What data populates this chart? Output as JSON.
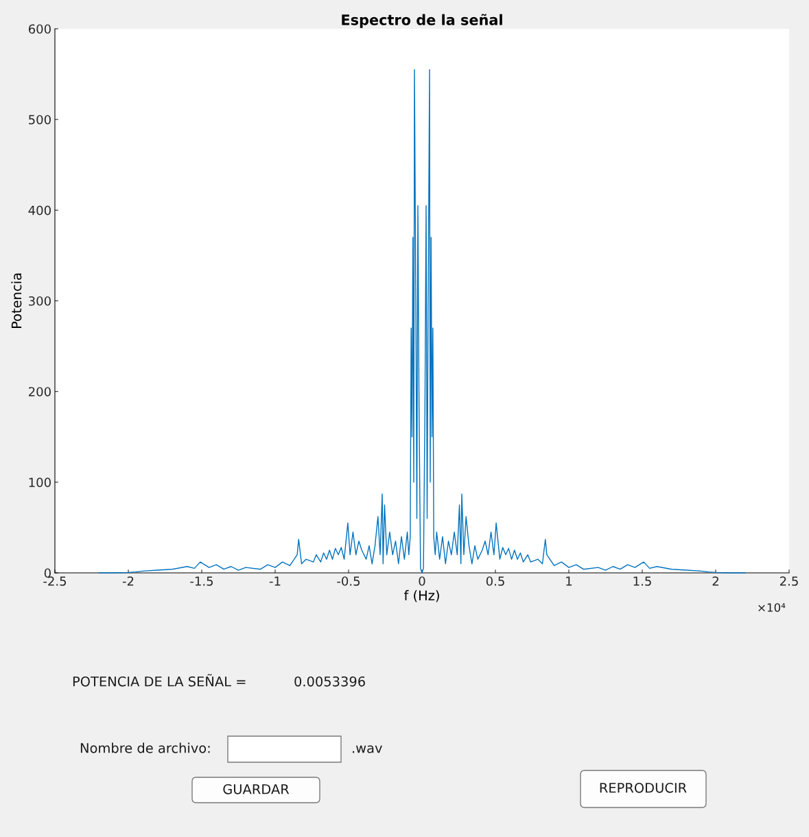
{
  "chart_data": {
    "type": "line",
    "title": "Espectro de la señal",
    "xlabel": "f (Hz)",
    "ylabel": "Potencia",
    "x": [
      -2.2,
      -2.1,
      -2.0,
      -1.95,
      -1.9,
      -1.8,
      -1.7,
      -1.6,
      -1.55,
      -1.51,
      -1.45,
      -1.4,
      -1.35,
      -1.3,
      -1.25,
      -1.2,
      -1.1,
      -1.05,
      -1.0,
      -0.95,
      -0.9,
      -0.85,
      -0.84,
      -0.82,
      -0.79,
      -0.74,
      -0.72,
      -0.69,
      -0.67,
      -0.65,
      -0.63,
      -0.61,
      -0.59,
      -0.57,
      -0.55,
      -0.53,
      -0.505,
      -0.49,
      -0.47,
      -0.45,
      -0.43,
      -0.41,
      -0.38,
      -0.36,
      -0.34,
      -0.32,
      -0.3,
      -0.285,
      -0.271,
      -0.265,
      -0.255,
      -0.24,
      -0.22,
      -0.2,
      -0.18,
      -0.16,
      -0.14,
      -0.12,
      -0.1,
      -0.09,
      -0.08,
      -0.074,
      -0.068,
      -0.062,
      -0.056,
      -0.0514,
      -0.042,
      -0.035,
      -0.028,
      -0.02,
      -0.01,
      0,
      0.01,
      0.02,
      0.028,
      0.035,
      0.042,
      0.0514,
      0.056,
      0.062,
      0.068,
      0.074,
      0.08,
      0.09,
      0.1,
      0.12,
      0.14,
      0.16,
      0.18,
      0.2,
      0.22,
      0.24,
      0.255,
      0.265,
      0.271,
      0.285,
      0.3,
      0.32,
      0.34,
      0.36,
      0.38,
      0.41,
      0.43,
      0.45,
      0.47,
      0.49,
      0.505,
      0.53,
      0.55,
      0.57,
      0.59,
      0.61,
      0.63,
      0.65,
      0.67,
      0.69,
      0.72,
      0.74,
      0.79,
      0.82,
      0.84,
      0.85,
      0.9,
      0.95,
      1.0,
      1.05,
      1.1,
      1.2,
      1.25,
      1.3,
      1.35,
      1.4,
      1.45,
      1.51,
      1.55,
      1.6,
      1.7,
      1.8,
      1.9,
      1.95,
      2.0,
      2.1,
      2.2
    ],
    "values": [
      0,
      0,
      0.5,
      1,
      2,
      3,
      4,
      7,
      5,
      12,
      6,
      9,
      4,
      7,
      3,
      6,
      4,
      9,
      6,
      12,
      8,
      20,
      37,
      10,
      15,
      12,
      20,
      12,
      22,
      15,
      25,
      15,
      27,
      20,
      28,
      15,
      55,
      20,
      45,
      20,
      35,
      25,
      15,
      30,
      10,
      30,
      62,
      20,
      87,
      10,
      75,
      20,
      45,
      20,
      35,
      10,
      40,
      15,
      45,
      20,
      40,
      270,
      150,
      370,
      100,
      555,
      300,
      60,
      405,
      180,
      5,
      0,
      5,
      180,
      405,
      60,
      300,
      555,
      100,
      370,
      150,
      270,
      40,
      20,
      45,
      15,
      40,
      10,
      35,
      20,
      45,
      20,
      75,
      10,
      87,
      20,
      62,
      30,
      10,
      30,
      15,
      25,
      35,
      20,
      45,
      20,
      55,
      15,
      28,
      20,
      27,
      15,
      25,
      15,
      22,
      12,
      20,
      12,
      15,
      10,
      37,
      20,
      8,
      12,
      6,
      9,
      4,
      6,
      3,
      7,
      4,
      9,
      6,
      12,
      5,
      7,
      4,
      3,
      2,
      1,
      0.5,
      0,
      0
    ],
    "color": "#0072bd",
    "marker": "none",
    "line_style": "solid",
    "grid": false,
    "legend": false,
    "xlim": [
      -2.5,
      2.5
    ],
    "ylim": [
      0,
      600
    ],
    "xticks": [
      -2.5,
      -2,
      -1.5,
      -1,
      -0.5,
      0,
      0.5,
      1,
      1.5,
      2,
      2.5
    ],
    "yticks": [
      0,
      100,
      200,
      300,
      400,
      500,
      600
    ],
    "annotations": [
      "×10⁴",
      "POTENCIA DE LA SEÑAL =",
      "0.0053396",
      "Nombre de archivo:",
      ".wav",
      "GUARDAR",
      "REPRODUCIR"
    ]
  }
}
